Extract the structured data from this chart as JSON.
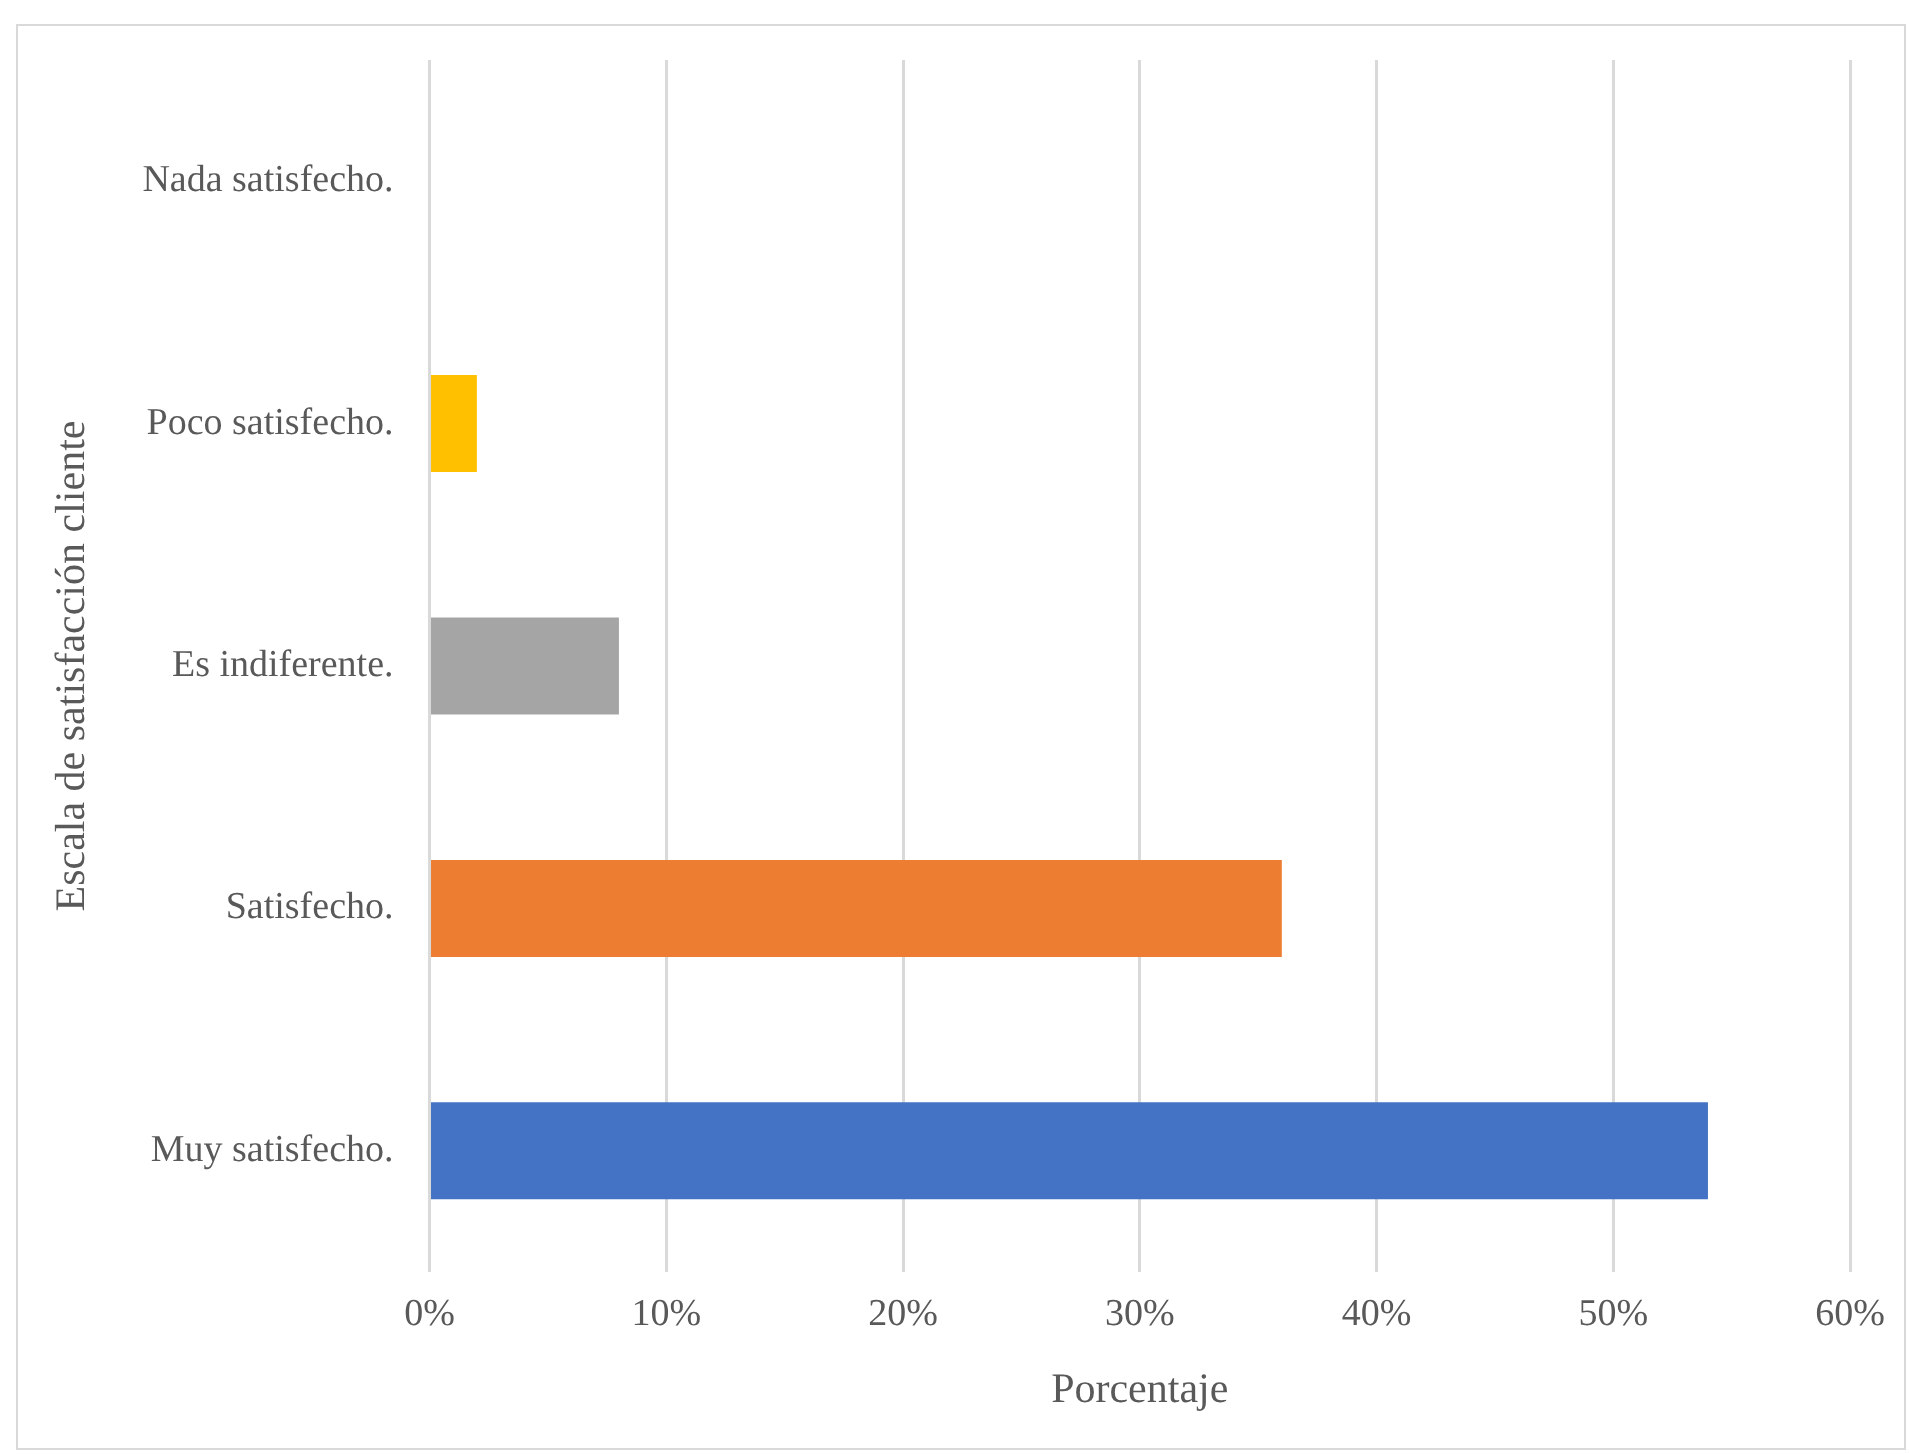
{
  "chart_data": {
    "type": "bar",
    "orientation": "horizontal",
    "xlabel": "Porcentaje",
    "ylabel": "Escala de satisfacción cliente",
    "categories": [
      "Nada satisfecho.",
      "Poco satisfecho.",
      "Es indiferente.",
      "Satisfecho.",
      "Muy satisfecho."
    ],
    "values": [
      0,
      2,
      8,
      36,
      54
    ],
    "colors": [
      "#5b9bd5",
      "#ffc000",
      "#a5a5a5",
      "#ed7d31",
      "#4472c4"
    ],
    "xlim": [
      0,
      60
    ],
    "xticks": [
      {
        "value": 0,
        "label": "0%"
      },
      {
        "value": 10,
        "label": "10%"
      },
      {
        "value": 20,
        "label": "20%"
      },
      {
        "value": 30,
        "label": "30%"
      },
      {
        "value": 40,
        "label": "40%"
      },
      {
        "value": 50,
        "label": "50%"
      },
      {
        "value": 60,
        "label": "60%"
      }
    ],
    "grid": "x",
    "legend": false
  }
}
